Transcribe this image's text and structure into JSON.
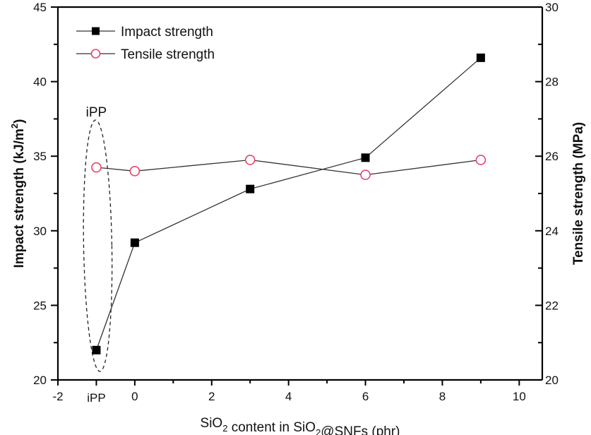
{
  "chart_data": {
    "type": "line",
    "title": "",
    "xlabel": {
      "parts": [
        {
          "text": "SiO",
          "sub": false
        },
        {
          "text": "2",
          "sub": true
        },
        {
          "text": " content in  SiO",
          "sub": false
        },
        {
          "text": "2",
          "sub": true
        },
        {
          "text": "@SNFs  (phr)",
          "sub": false
        }
      ],
      "full": "SiO2 content in  SiO2@SNFs  (phr)"
    },
    "ylabel_left": {
      "text": "Impact strength (kJ/m",
      "sup": "2",
      "end": ")",
      "full": "Impact strength (kJ/m2)"
    },
    "ylabel_right": "Tensile strength (MPa)",
    "xlim": [
      -2,
      10.6
    ],
    "ylim_left": [
      20,
      45
    ],
    "ylim_right": [
      20,
      30
    ],
    "x_ticks": [
      {
        "value": -2,
        "label": "-2"
      },
      {
        "value": -1,
        "label": "iPP"
      },
      {
        "value": 0,
        "label": "0"
      },
      {
        "value": 2,
        "label": "2"
      },
      {
        "value": 4,
        "label": "4"
      },
      {
        "value": 6,
        "label": "6"
      },
      {
        "value": 8,
        "label": "8"
      },
      {
        "value": 10,
        "label": "10"
      }
    ],
    "x_minor_ticks": [
      1,
      3,
      5,
      7,
      9
    ],
    "y_left_ticks": [
      20,
      25,
      30,
      35,
      40,
      45
    ],
    "y_left_minor_ticks": [
      22.5,
      27.5,
      32.5,
      37.5,
      42.5
    ],
    "y_right_ticks": [
      20,
      22,
      24,
      26,
      28,
      30
    ],
    "y_right_minor_ticks": [
      21,
      23,
      25,
      27,
      29
    ],
    "grid": false,
    "legend_position": "top-left",
    "series": [
      {
        "name": "Impact strength",
        "axis": "left",
        "marker": "filled-square",
        "color": "#000000",
        "x": [
          -1,
          0,
          3,
          6,
          9
        ],
        "values": [
          22.0,
          29.2,
          32.8,
          34.9,
          41.6
        ]
      },
      {
        "name": "Tensile strength",
        "axis": "right",
        "marker": "open-circle",
        "color": "#e8436b",
        "x": [
          -1,
          0,
          3,
          6,
          9
        ],
        "values": [
          25.7,
          25.6,
          25.9,
          25.5,
          25.9
        ]
      }
    ],
    "annotations": [
      {
        "text": "iPP",
        "target_x": -1,
        "shape": "dashed-ellipse"
      }
    ]
  }
}
